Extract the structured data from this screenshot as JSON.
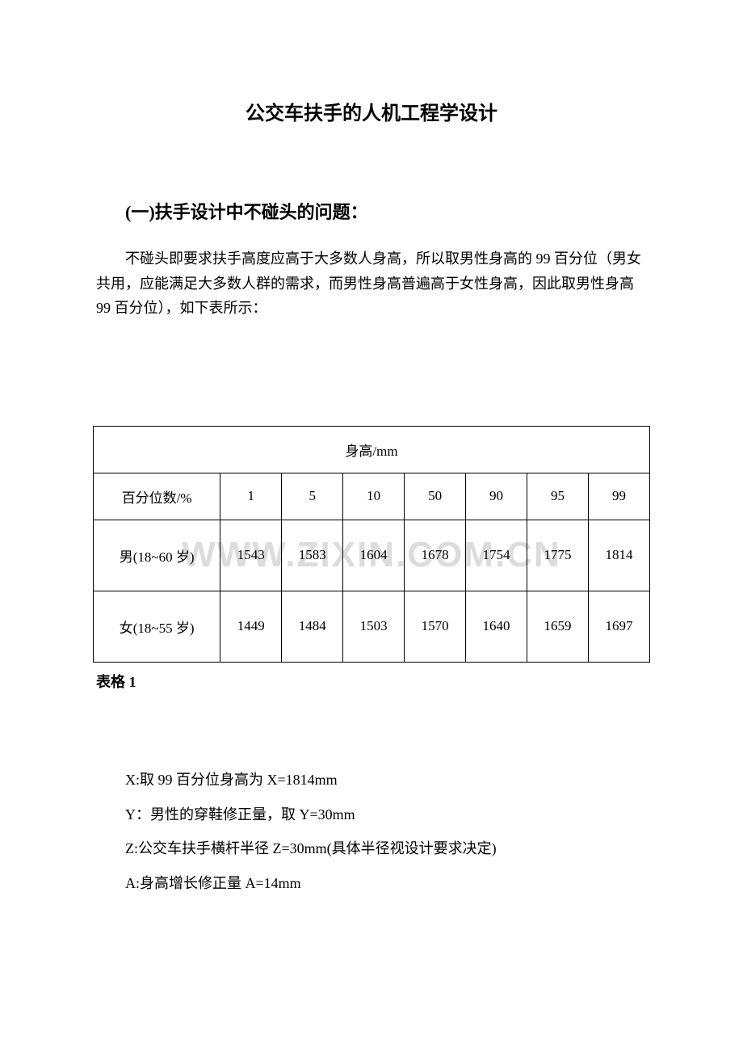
{
  "title": "公交车扶手的人机工程学设计",
  "section": {
    "heading": "(一)扶手设计中不碰头的问题：",
    "paragraph": "不碰头即要求扶手高度应高于大多数人身高，所以取男性身高的 99 百分位（男女共用，应能满足大多数人群的需求，而男性身高普遍高于女性身高，因此取男性身高 99 百分位），如下表所示："
  },
  "watermark": "WWW.ZIXIN.COM.CN",
  "table": {
    "title": "身高/mm",
    "header_label": "百分位数/%",
    "percentiles": [
      "1",
      "5",
      "10",
      "50",
      "90",
      "95",
      "99"
    ],
    "rows": [
      {
        "label": "男(18~60 岁)",
        "values": [
          "1543",
          "1583",
          "1604",
          "1678",
          "1754",
          "1775",
          "1814"
        ]
      },
      {
        "label": "女(18~55 岁)",
        "values": [
          "1449",
          "1484",
          "1503",
          "1570",
          "1640",
          "1659",
          "1697"
        ]
      }
    ],
    "caption": "表格 1",
    "border_color": "#000000",
    "bg_color": "#ffffff",
    "text_color": "#000000",
    "font_size": 17
  },
  "definitions": [
    "X:取 99 百分位身高为 X=1814mm",
    "Y：男性的穿鞋修正量，取 Y=30mm",
    "Z:公交车扶手横杆半径 Z=30mm(具体半径视设计要求决定)",
    "A:身高增长修正量 A=14mm"
  ]
}
